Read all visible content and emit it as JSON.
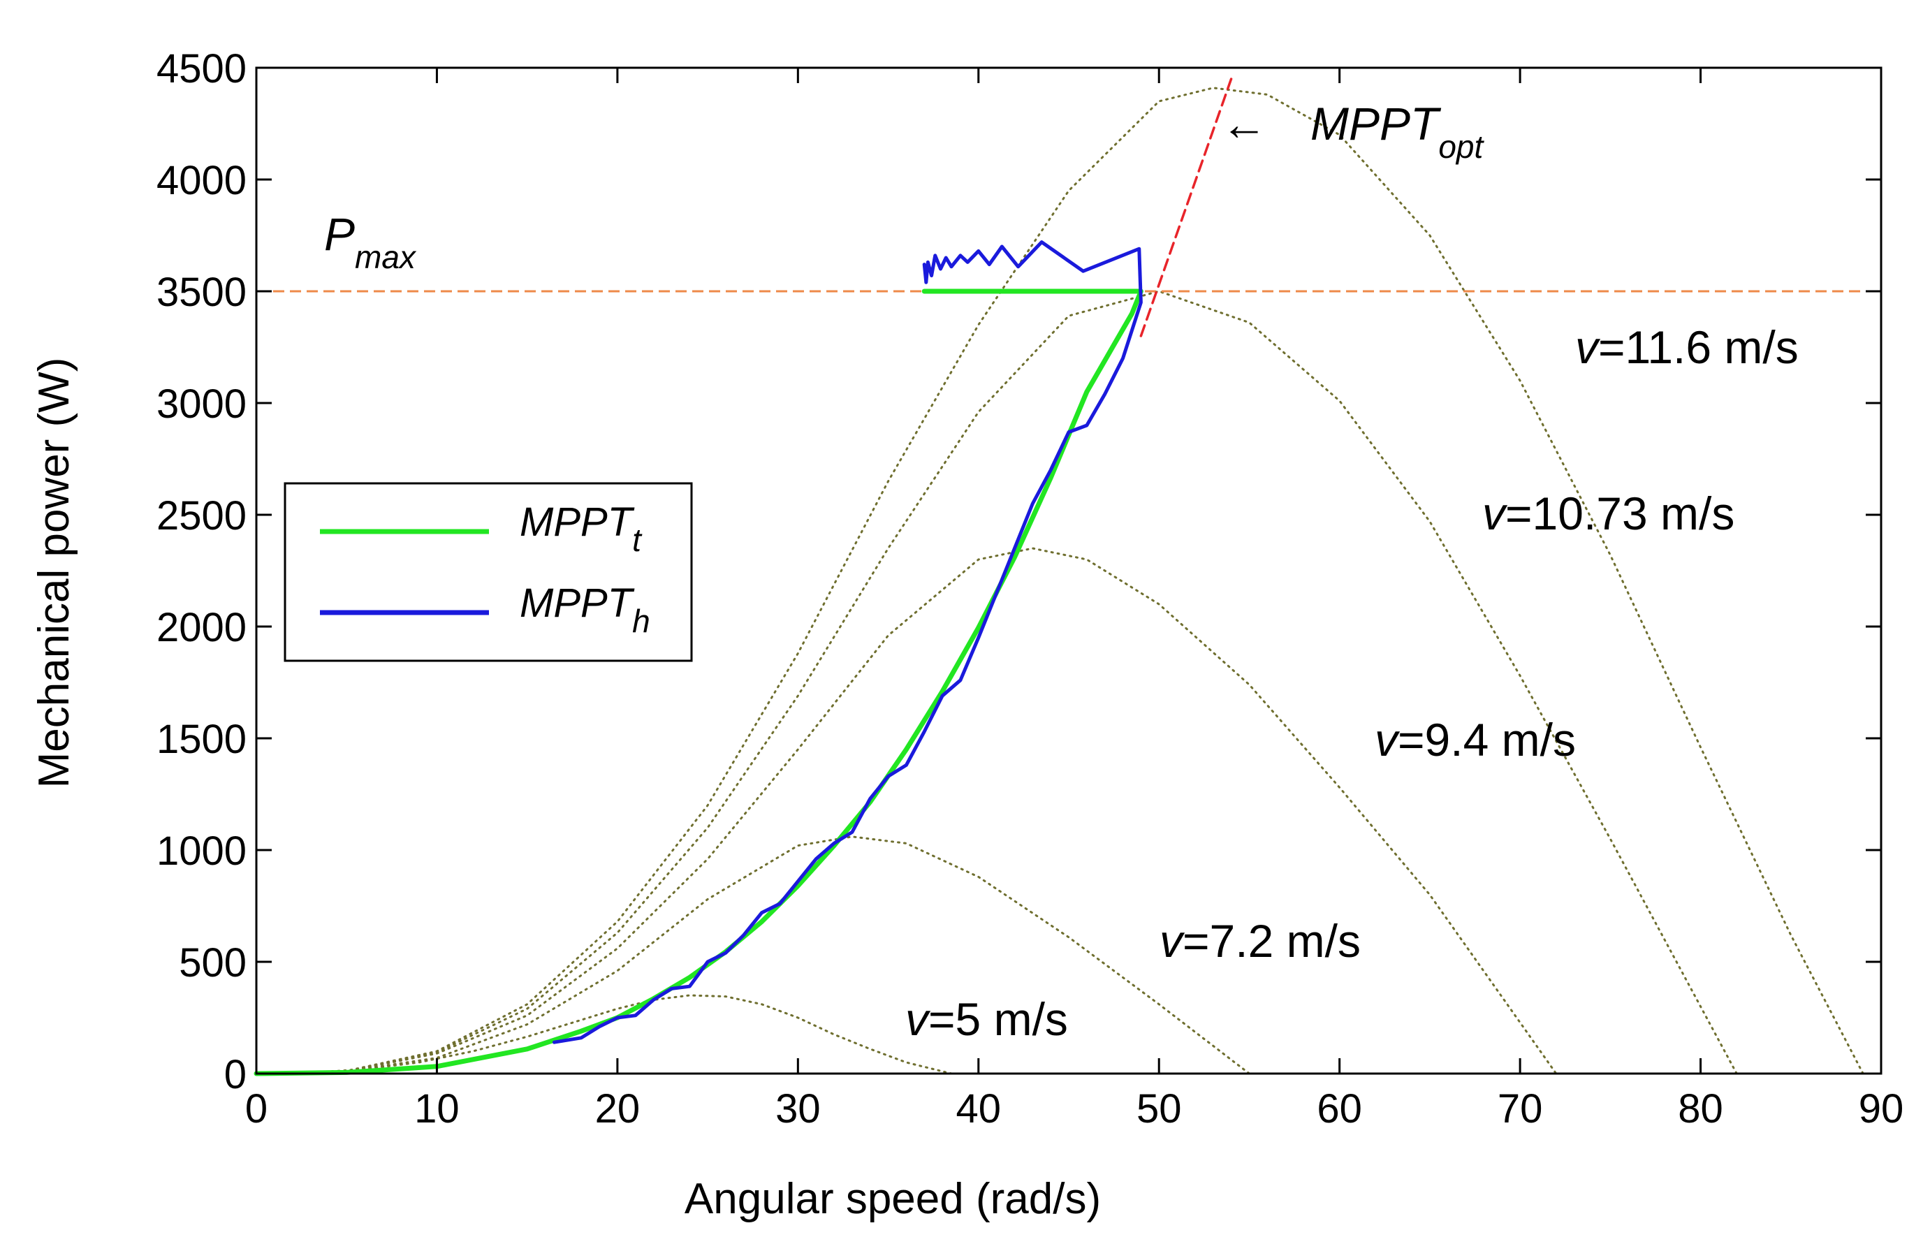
{
  "chart_data": {
    "type": "line",
    "xlabel": "Angular speed (rad/s)",
    "ylabel": "Mechanical power (W)",
    "xlim": [
      0,
      90
    ],
    "ylim": [
      0,
      4500
    ],
    "x_ticks": [
      "0",
      "10",
      "20",
      "30",
      "40",
      "50",
      "60",
      "70",
      "80",
      "90"
    ],
    "y_ticks": [
      "0",
      "500",
      "1000",
      "1500",
      "2000",
      "2500",
      "3000",
      "3500",
      "4000",
      "4500"
    ],
    "grid": false,
    "legend_position": "left-middle",
    "colors": {
      "mppt_t": "#22e622",
      "mppt_h": "#1a1adc",
      "mppt_opt": "#e8242a",
      "p_max": "#ee8a4a",
      "wind_curves": "#6f6f2f"
    },
    "wind_curves": [
      {
        "label_v": "v",
        "label_rest": "=5 m/s",
        "omega_max": 38.5,
        "x": [
          0,
          3,
          6,
          9,
          12,
          15,
          18,
          20,
          22,
          24,
          26,
          28,
          30,
          32,
          34,
          36,
          38.5
        ],
        "y": [
          0,
          3,
          20,
          50,
          100,
          165,
          240,
          290,
          330,
          350,
          345,
          310,
          250,
          175,
          110,
          50,
          0
        ]
      },
      {
        "label_v": "v",
        "label_rest": "=7.2 m/s",
        "omega_max": 55.0,
        "x": [
          0,
          5,
          10,
          15,
          20,
          25,
          30,
          33,
          36,
          40,
          45,
          50,
          55
        ],
        "y": [
          0,
          10,
          70,
          220,
          460,
          780,
          1020,
          1060,
          1030,
          880,
          610,
          310,
          0
        ]
      },
      {
        "label_v": "v",
        "label_rest": "=9.4 m/s",
        "omega_max": 72.0,
        "x": [
          0,
          5,
          10,
          15,
          20,
          25,
          30,
          35,
          40,
          43,
          46,
          50,
          55,
          60,
          65,
          72
        ],
        "y": [
          0,
          10,
          90,
          260,
          560,
          960,
          1450,
          1960,
          2300,
          2350,
          2300,
          2100,
          1740,
          1280,
          800,
          0
        ]
      },
      {
        "label_v": "v",
        "label_rest": "=10.73 m/s",
        "omega_max": 82.0,
        "x": [
          0,
          5,
          10,
          15,
          20,
          25,
          30,
          35,
          40,
          45,
          50,
          55,
          60,
          65,
          70,
          75,
          82
        ],
        "y": [
          0,
          10,
          95,
          290,
          630,
          1100,
          1690,
          2350,
          2960,
          3390,
          3500,
          3360,
          3010,
          2470,
          1780,
          1050,
          0
        ]
      },
      {
        "label_v": "v",
        "label_rest": "=11.6 m/s",
        "omega_max": 89.0,
        "x": [
          0,
          5,
          10,
          15,
          20,
          25,
          30,
          35,
          40,
          45,
          50,
          53,
          56,
          60,
          65,
          70,
          75,
          80,
          85,
          89
        ],
        "y": [
          0,
          12,
          100,
          310,
          680,
          1200,
          1880,
          2650,
          3350,
          3950,
          4350,
          4410,
          4380,
          4200,
          3750,
          3100,
          2320,
          1460,
          620,
          0
        ]
      }
    ],
    "series": [
      {
        "name": "MPPT_t",
        "x": [
          0,
          5,
          10,
          15,
          18,
          20,
          22,
          24,
          26,
          28,
          30,
          32,
          34,
          36,
          38,
          40,
          42,
          44,
          46,
          47.5,
          48.5,
          49.0,
          48.0,
          45,
          42,
          39,
          37
        ],
        "y": [
          0,
          5,
          32,
          110,
          190,
          250,
          335,
          430,
          545,
          680,
          840,
          1020,
          1215,
          1450,
          1710,
          1995,
          2310,
          2665,
          3050,
          3260,
          3400,
          3500,
          3500,
          3500,
          3500,
          3500,
          3500
        ]
      },
      {
        "name": "MPPT_h",
        "x": [
          16.5,
          18,
          19,
          20,
          21,
          22,
          23,
          24,
          25,
          26,
          27,
          28,
          29,
          30,
          31,
          32,
          33,
          34,
          35,
          36,
          37,
          38,
          39,
          40,
          41,
          42,
          43,
          44,
          45,
          46,
          47,
          48,
          48.6,
          49.0,
          48.9,
          45.8,
          43.5,
          42.2,
          41.3,
          40.6,
          40.0,
          39.4,
          39.0,
          38.5,
          38.2,
          37.9,
          37.6,
          37.4,
          37.2,
          37.1,
          37.0
        ],
        "y": [
          140,
          160,
          210,
          250,
          260,
          330,
          380,
          390,
          500,
          540,
          620,
          720,
          760,
          860,
          960,
          1030,
          1080,
          1230,
          1330,
          1380,
          1530,
          1690,
          1760,
          1950,
          2150,
          2350,
          2550,
          2700,
          2870,
          2900,
          3040,
          3200,
          3350,
          3450,
          3690,
          3590,
          3720,
          3610,
          3700,
          3620,
          3680,
          3630,
          3660,
          3610,
          3650,
          3600,
          3660,
          3570,
          3630,
          3540,
          3620
        ]
      },
      {
        "name": "MPPT_opt",
        "x": [
          49.0,
          54.0
        ],
        "y": [
          3300,
          4450
        ]
      }
    ],
    "p_max": 3500,
    "annotations": {
      "p_max_main": "P",
      "p_max_sub": "max",
      "mppt_opt_arrow": "←",
      "mppt_opt_main": "MPPT",
      "mppt_opt_sub": "opt"
    },
    "legend": [
      {
        "main": "MPPT",
        "sub": "t"
      },
      {
        "main": "MPPT",
        "sub": "h"
      }
    ]
  }
}
